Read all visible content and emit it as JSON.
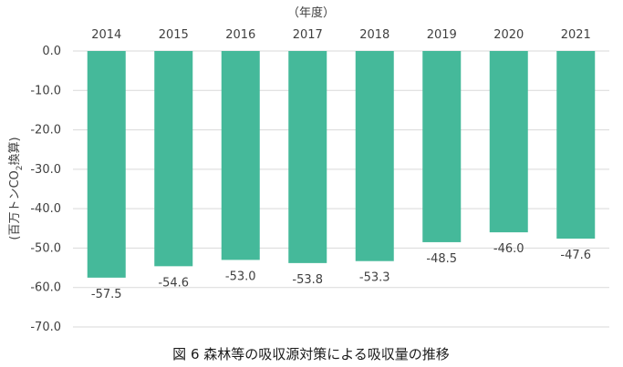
{
  "chart_data": {
    "type": "bar",
    "title": "図 6  森林等の吸収源対策による吸収量の推移",
    "xlabel": "（年度）",
    "ylabel": "(百万トンCO2換算)",
    "ylabel_parts": [
      "(百万トンCO",
      "2",
      "換算)"
    ],
    "categories": [
      "2014",
      "2015",
      "2016",
      "2017",
      "2018",
      "2019",
      "2020",
      "2021"
    ],
    "values": [
      -57.5,
      -54.6,
      -53.0,
      -53.8,
      -53.3,
      -48.5,
      -46.0,
      -47.6
    ],
    "data_labels": [
      "-57.5",
      "-54.6",
      "-53.0",
      "-53.8",
      "-53.3",
      "-48.5",
      "-46.0",
      "-47.6"
    ],
    "yticks": [
      "0.0",
      "-10.0",
      "-20.0",
      "-30.0",
      "-40.0",
      "-50.0",
      "-60.0",
      "-70.0"
    ],
    "ylim": [
      -70,
      0
    ],
    "x_axis_position": "top",
    "grid": true,
    "bar_color": "#45b99a"
  }
}
